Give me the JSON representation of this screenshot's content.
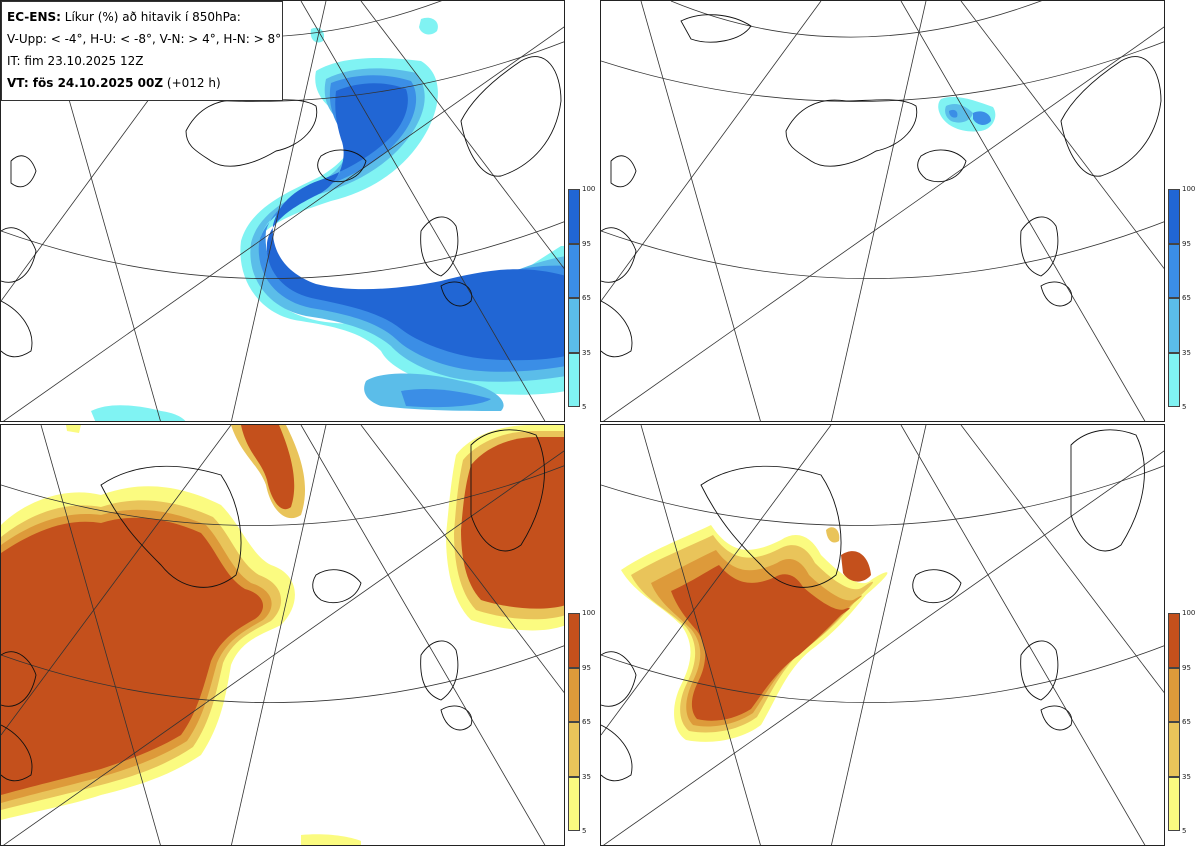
{
  "legend": {
    "line1_prefix": "EC-ENS:",
    "line1_rest": " Líkur (%) að hitavik í 850hPa:",
    "line2": "V-Upp: < -4°, H-U: < -8°, V-N: > 4°, H-N: > 8°",
    "line3": "IT: fim 23.10.2025 12Z",
    "line4_prefix": "VT: fös 24.10.2025 00Z",
    "line4_rest": " (+012 h)"
  },
  "colorbars": {
    "ticks": [
      "100",
      "95",
      "65",
      "35",
      "5"
    ],
    "blue": [
      "#2166d4",
      "#3b8ee6",
      "#5bbde9",
      "#80f3f3"
    ],
    "orange": [
      "#c4501c",
      "#dd9a3a",
      "#e9c45a",
      "#fbfb80"
    ]
  },
  "panels": [
    {
      "id": "top-left",
      "scheme": "blue"
    },
    {
      "id": "top-right",
      "scheme": "blue"
    },
    {
      "id": "bottom-left",
      "scheme": "orange"
    },
    {
      "id": "bottom-right",
      "scheme": "orange"
    }
  ]
}
